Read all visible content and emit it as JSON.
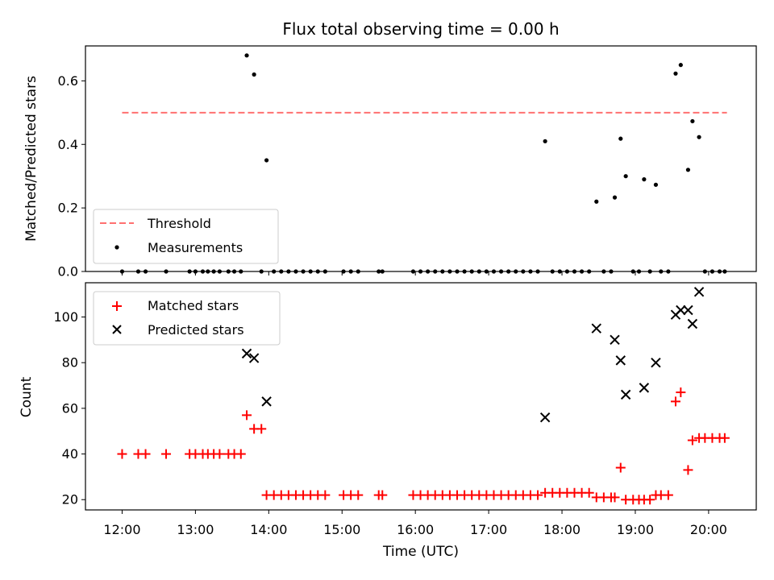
{
  "chart_data": {
    "title": "Flux total observing time = 0.00 h",
    "xlabel": "Time (UTC)",
    "xtick_labels": [
      "12:00",
      "13:00",
      "14:00",
      "15:00",
      "16:00",
      "17:00",
      "18:00",
      "19:00",
      "20:00"
    ],
    "xlim_hours": [
      11.5,
      20.65
    ],
    "top_panel": {
      "type": "scatter",
      "ylabel": "Matched/Predicted stars",
      "ylim": [
        0,
        0.71
      ],
      "ytick_labels": [
        "0.0",
        "0.2",
        "0.4",
        "0.6"
      ],
      "yticks": [
        0,
        0.2,
        0.4,
        0.6
      ],
      "legend_position": "lower-left",
      "threshold": {
        "name": "Threshold",
        "value": 0.5,
        "x_range": [
          12.0,
          20.25
        ],
        "color": "#ff7070",
        "style": "dashed"
      },
      "measurements": {
        "name": "Measurements",
        "color": "#000000",
        "points": [
          [
            12.0,
            0
          ],
          [
            12.22,
            0
          ],
          [
            12.32,
            0
          ],
          [
            12.6,
            0
          ],
          [
            12.92,
            0
          ],
          [
            13.0,
            0
          ],
          [
            13.1,
            0
          ],
          [
            13.17,
            0
          ],
          [
            13.25,
            0
          ],
          [
            13.33,
            0
          ],
          [
            13.45,
            0
          ],
          [
            13.53,
            0
          ],
          [
            13.62,
            0
          ],
          [
            13.7,
            0.68
          ],
          [
            13.8,
            0.62
          ],
          [
            13.9,
            0
          ],
          [
            13.97,
            0.35
          ],
          [
            14.07,
            0
          ],
          [
            14.17,
            0
          ],
          [
            14.27,
            0
          ],
          [
            14.37,
            0
          ],
          [
            14.47,
            0
          ],
          [
            14.57,
            0
          ],
          [
            14.67,
            0
          ],
          [
            14.77,
            0
          ],
          [
            15.02,
            0
          ],
          [
            15.12,
            0
          ],
          [
            15.22,
            0
          ],
          [
            15.5,
            0
          ],
          [
            15.55,
            0
          ],
          [
            15.97,
            0
          ],
          [
            16.07,
            0
          ],
          [
            16.17,
            0
          ],
          [
            16.27,
            0
          ],
          [
            16.37,
            0
          ],
          [
            16.47,
            0
          ],
          [
            16.57,
            0
          ],
          [
            16.67,
            0
          ],
          [
            16.77,
            0
          ],
          [
            16.87,
            0
          ],
          [
            16.97,
            0
          ],
          [
            17.07,
            0
          ],
          [
            17.17,
            0
          ],
          [
            17.27,
            0
          ],
          [
            17.37,
            0
          ],
          [
            17.47,
            0
          ],
          [
            17.57,
            0
          ],
          [
            17.67,
            0
          ],
          [
            17.77,
            0.41
          ],
          [
            17.87,
            0
          ],
          [
            17.97,
            0
          ],
          [
            18.07,
            0
          ],
          [
            18.17,
            0
          ],
          [
            18.27,
            0
          ],
          [
            18.37,
            0
          ],
          [
            18.47,
            0.22
          ],
          [
            18.57,
            0
          ],
          [
            18.67,
            0
          ],
          [
            18.72,
            0.233
          ],
          [
            18.8,
            0.418
          ],
          [
            18.87,
            0.3
          ],
          [
            18.97,
            0
          ],
          [
            19.05,
            0
          ],
          [
            19.12,
            0.29
          ],
          [
            19.2,
            0
          ],
          [
            19.28,
            0.273
          ],
          [
            19.35,
            0
          ],
          [
            19.45,
            0
          ],
          [
            19.55,
            0.623
          ],
          [
            19.62,
            0.65
          ],
          [
            19.72,
            0.32
          ],
          [
            19.78,
            0.473
          ],
          [
            19.87,
            0.423
          ],
          [
            19.95,
            0
          ],
          [
            20.05,
            0
          ],
          [
            20.15,
            0
          ],
          [
            20.22,
            0
          ]
        ]
      }
    },
    "bottom_panel": {
      "type": "scatter",
      "ylabel": "Count",
      "ylim": [
        15.5,
        115
      ],
      "ytick_labels": [
        "20",
        "40",
        "60",
        "80",
        "100"
      ],
      "yticks": [
        20,
        40,
        60,
        80,
        100
      ],
      "legend_position": "upper-left",
      "matched": {
        "name": "Matched stars",
        "color": "#ff0000",
        "marker": "+",
        "points": [
          [
            12.0,
            40
          ],
          [
            12.22,
            40
          ],
          [
            12.32,
            40
          ],
          [
            12.6,
            40
          ],
          [
            12.92,
            40
          ],
          [
            13.0,
            40
          ],
          [
            13.1,
            40
          ],
          [
            13.17,
            40
          ],
          [
            13.25,
            40
          ],
          [
            13.33,
            40
          ],
          [
            13.45,
            40
          ],
          [
            13.53,
            40
          ],
          [
            13.62,
            40
          ],
          [
            13.7,
            57
          ],
          [
            13.8,
            51
          ],
          [
            13.9,
            51
          ],
          [
            13.97,
            22
          ],
          [
            14.07,
            22
          ],
          [
            14.17,
            22
          ],
          [
            14.27,
            22
          ],
          [
            14.37,
            22
          ],
          [
            14.47,
            22
          ],
          [
            14.57,
            22
          ],
          [
            14.67,
            22
          ],
          [
            14.77,
            22
          ],
          [
            15.02,
            22
          ],
          [
            15.12,
            22
          ],
          [
            15.22,
            22
          ],
          [
            15.5,
            22
          ],
          [
            15.55,
            22
          ],
          [
            15.97,
            22
          ],
          [
            16.07,
            22
          ],
          [
            16.17,
            22
          ],
          [
            16.27,
            22
          ],
          [
            16.37,
            22
          ],
          [
            16.47,
            22
          ],
          [
            16.57,
            22
          ],
          [
            16.67,
            22
          ],
          [
            16.77,
            22
          ],
          [
            16.87,
            22
          ],
          [
            16.97,
            22
          ],
          [
            17.07,
            22
          ],
          [
            17.17,
            22
          ],
          [
            17.27,
            22
          ],
          [
            17.37,
            22
          ],
          [
            17.47,
            22
          ],
          [
            17.57,
            22
          ],
          [
            17.67,
            22
          ],
          [
            17.77,
            23
          ],
          [
            17.87,
            23
          ],
          [
            17.97,
            23
          ],
          [
            18.07,
            23
          ],
          [
            18.17,
            23
          ],
          [
            18.27,
            23
          ],
          [
            18.37,
            23
          ],
          [
            18.47,
            21
          ],
          [
            18.57,
            21
          ],
          [
            18.67,
            21
          ],
          [
            18.72,
            21
          ],
          [
            18.8,
            34
          ],
          [
            18.87,
            20
          ],
          [
            18.97,
            20
          ],
          [
            19.05,
            20
          ],
          [
            19.12,
            20
          ],
          [
            19.2,
            20
          ],
          [
            19.28,
            22
          ],
          [
            19.35,
            22
          ],
          [
            19.45,
            22
          ],
          [
            19.55,
            63
          ],
          [
            19.62,
            67
          ],
          [
            19.72,
            33
          ],
          [
            19.78,
            46
          ],
          [
            19.87,
            47
          ],
          [
            19.95,
            47
          ],
          [
            20.05,
            47
          ],
          [
            20.15,
            47
          ],
          [
            20.22,
            47
          ]
        ]
      },
      "predicted": {
        "name": "Predicted stars",
        "color": "#000000",
        "marker": "x",
        "points": [
          [
            13.7,
            84
          ],
          [
            13.8,
            82
          ],
          [
            13.97,
            63
          ],
          [
            17.77,
            56
          ],
          [
            18.47,
            95
          ],
          [
            18.72,
            90
          ],
          [
            18.8,
            81
          ],
          [
            18.87,
            66
          ],
          [
            19.12,
            69
          ],
          [
            19.28,
            80
          ],
          [
            19.55,
            101
          ],
          [
            19.62,
            103
          ],
          [
            19.72,
            103
          ],
          [
            19.78,
            97
          ],
          [
            19.87,
            111
          ]
        ]
      }
    }
  }
}
